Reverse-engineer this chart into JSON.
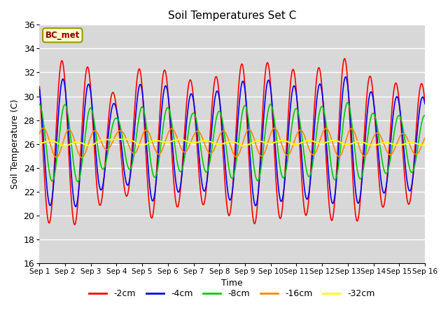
{
  "title": "Soil Temperatures Set C",
  "xlabel": "Time",
  "ylabel": "Soil Temperature (C)",
  "ylim": [
    16,
    36
  ],
  "xlim_days": 15,
  "annotation": "BC_met",
  "legend_labels": [
    "-2cm",
    "-4cm",
    "-8cm",
    "-16cm",
    "-32cm"
  ],
  "legend_colors": [
    "#ff0000",
    "#0000ff",
    "#00cc00",
    "#ff8800",
    "#ffff00"
  ],
  "background_color": "#d8d8d8",
  "grid_color": "#ffffff",
  "base_temp": 26.0,
  "yticks": [
    16,
    18,
    20,
    22,
    24,
    26,
    28,
    30,
    32,
    34,
    36
  ],
  "xtick_labels": [
    "Sep 1",
    "Sep 2",
    "Sep 3",
    "Sep 4",
    "Sep 5",
    "Sep 6",
    "Sep 7",
    "Sep 8",
    "Sep 9",
    "Sep 10",
    "Sep 11",
    "Sep 12",
    "Sep 13",
    "Sep 14",
    "Sep 15",
    "Sep 16"
  ],
  "xtick_positions": [
    0,
    1,
    2,
    3,
    4,
    5,
    6,
    7,
    8,
    9,
    10,
    11,
    12,
    13,
    14,
    15
  ]
}
